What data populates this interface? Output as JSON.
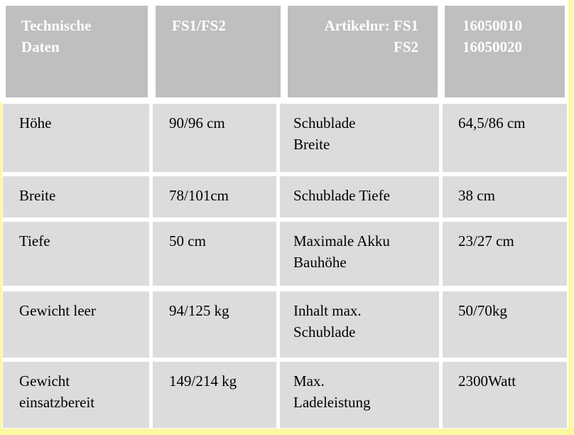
{
  "colors": {
    "page-bg": "#ffffff",
    "header-bg": "#bfbfbf",
    "header-text": "#ffffff",
    "cell-bg": "#dcdcdc",
    "body-text": "#000000",
    "frame-yellow": "#fbf8a1"
  },
  "table": {
    "header": [
      "Technische\nDaten",
      "FS1/FS2",
      "Artikelnr: FS1\nFS2",
      "16050010\n16050020"
    ],
    "rows": [
      [
        "Höhe",
        "90/96 cm",
        "Schublade\nBreite",
        "64,5/86 cm"
      ],
      [
        "Breite",
        "78/101cm",
        "Schublade Tiefe",
        "38 cm"
      ],
      [
        "Tiefe",
        "50 cm",
        "Maximale Akku\nBauhöhe",
        "23/27 cm"
      ],
      [
        "Gewicht leer",
        "94/125 kg",
        "Inhalt max.\nSchublade",
        "50/70kg"
      ],
      [
        "Gewicht\neinsatzbereit",
        "149/214 kg",
        "Max.\nLadeleistung",
        "2300Watt"
      ]
    ]
  }
}
